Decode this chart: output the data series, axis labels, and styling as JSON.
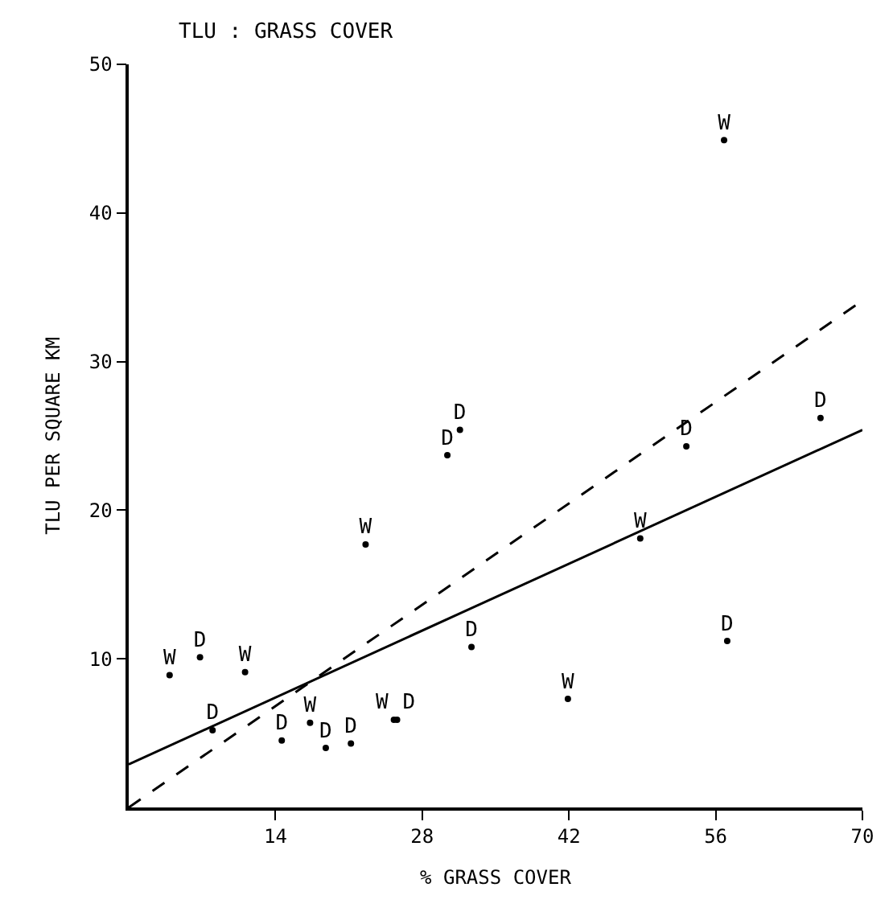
{
  "chart_data": {
    "type": "scatter",
    "title": "TLU : GRASS COVER",
    "xlabel": "% GRASS COVER",
    "ylabel": "TLU PER SQUARE KM",
    "xlim": [
      0,
      70
    ],
    "ylim": [
      0,
      50
    ],
    "xticks": [
      14,
      28,
      42,
      56,
      70
    ],
    "yticks": [
      10,
      20,
      30,
      40,
      50
    ],
    "series": [
      {
        "name": "W",
        "color": "#000000",
        "marker": "circle",
        "x": [
          3.9,
          11.1,
          22.6,
          17.3,
          25.3,
          41.9,
          48.8,
          56.8
        ],
        "values": [
          8.9,
          9.1,
          17.7,
          5.7,
          5.9,
          7.3,
          18.1,
          44.9
        ]
      },
      {
        "name": "D",
        "color": "#000000",
        "marker": "circle",
        "x": [
          6.8,
          8.0,
          14.6,
          18.8,
          21.2,
          25.6,
          30.4,
          31.6,
          32.7,
          53.2,
          57.1,
          66.0
        ],
        "values": [
          10.1,
          5.2,
          4.5,
          4.0,
          4.3,
          5.9,
          23.7,
          25.4,
          10.8,
          24.3,
          11.2,
          26.2
        ]
      },
      {
        "type": "line",
        "color": "#000000",
        "line_style": "solid",
        "marker": "none",
        "x": [
          0,
          70
        ],
        "values": [
          2.9,
          25.4
        ]
      },
      {
        "type": "line",
        "color": "#000000",
        "line_style": "dashed",
        "marker": "none",
        "x": [
          0,
          70
        ],
        "values": [
          0,
          34.1
        ]
      }
    ]
  }
}
